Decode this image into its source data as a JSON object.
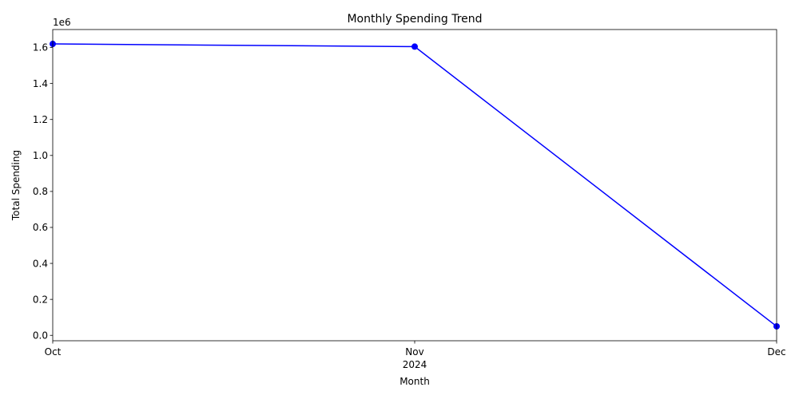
{
  "chart_data": {
    "type": "line",
    "title": "Monthly Spending Trend",
    "xlabel": "Month",
    "ylabel": "Total Spending",
    "y_offset_text": "1e6",
    "x_year_label": "2024",
    "categories": [
      "Oct",
      "Nov",
      "Dec"
    ],
    "x": [
      "2024-10",
      "2024-11",
      "2024-12"
    ],
    "series": [
      {
        "values": [
          1620000,
          1605000,
          50000
        ],
        "color": "#0000ff",
        "marker": "circle"
      }
    ],
    "ylim": [
      -30000,
      1700000
    ],
    "y_ticks": [
      0,
      200000,
      400000,
      600000,
      800000,
      1000000,
      1200000,
      1400000,
      1600000
    ],
    "y_tick_labels": [
      "0.0",
      "0.2",
      "0.4",
      "0.6",
      "0.8",
      "1.0",
      "1.2",
      "1.4",
      "1.6"
    ],
    "grid": false,
    "legend": "none"
  }
}
